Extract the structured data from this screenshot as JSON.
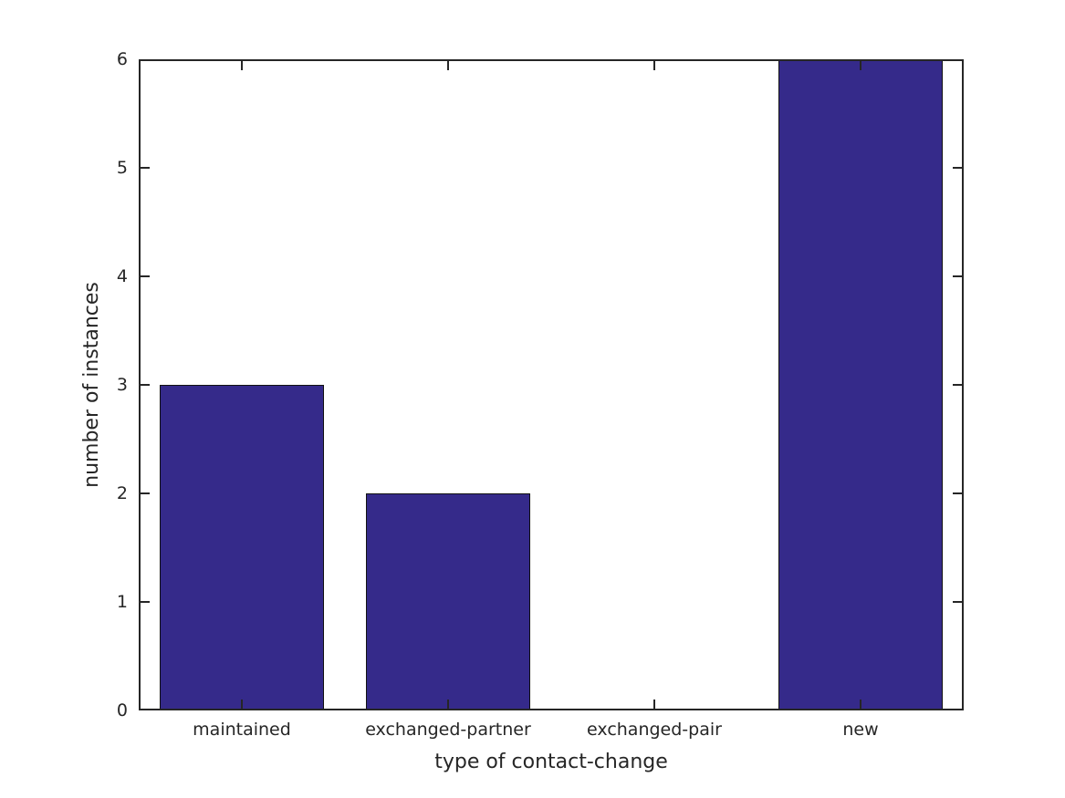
{
  "figure": {
    "background_color": "#ffffff"
  },
  "chart_data": {
    "type": "bar",
    "categories": [
      "maintained",
      "exchanged-partner",
      "exchanged-pair",
      "new"
    ],
    "values": [
      3,
      2,
      0,
      6
    ],
    "title": "",
    "xlabel": "type of contact-change",
    "ylabel": "number of instances",
    "ylim": [
      0,
      6
    ],
    "yticks": [
      0,
      1,
      2,
      3,
      4,
      5,
      6
    ],
    "grid": false,
    "legend": null,
    "box": true,
    "ticks_direction": "in",
    "bar_width_fraction": 0.8,
    "bar_color": "#352a8a",
    "bar_edge_color": "#111111",
    "axis_color": "#262626",
    "text_color": "#262626"
  }
}
